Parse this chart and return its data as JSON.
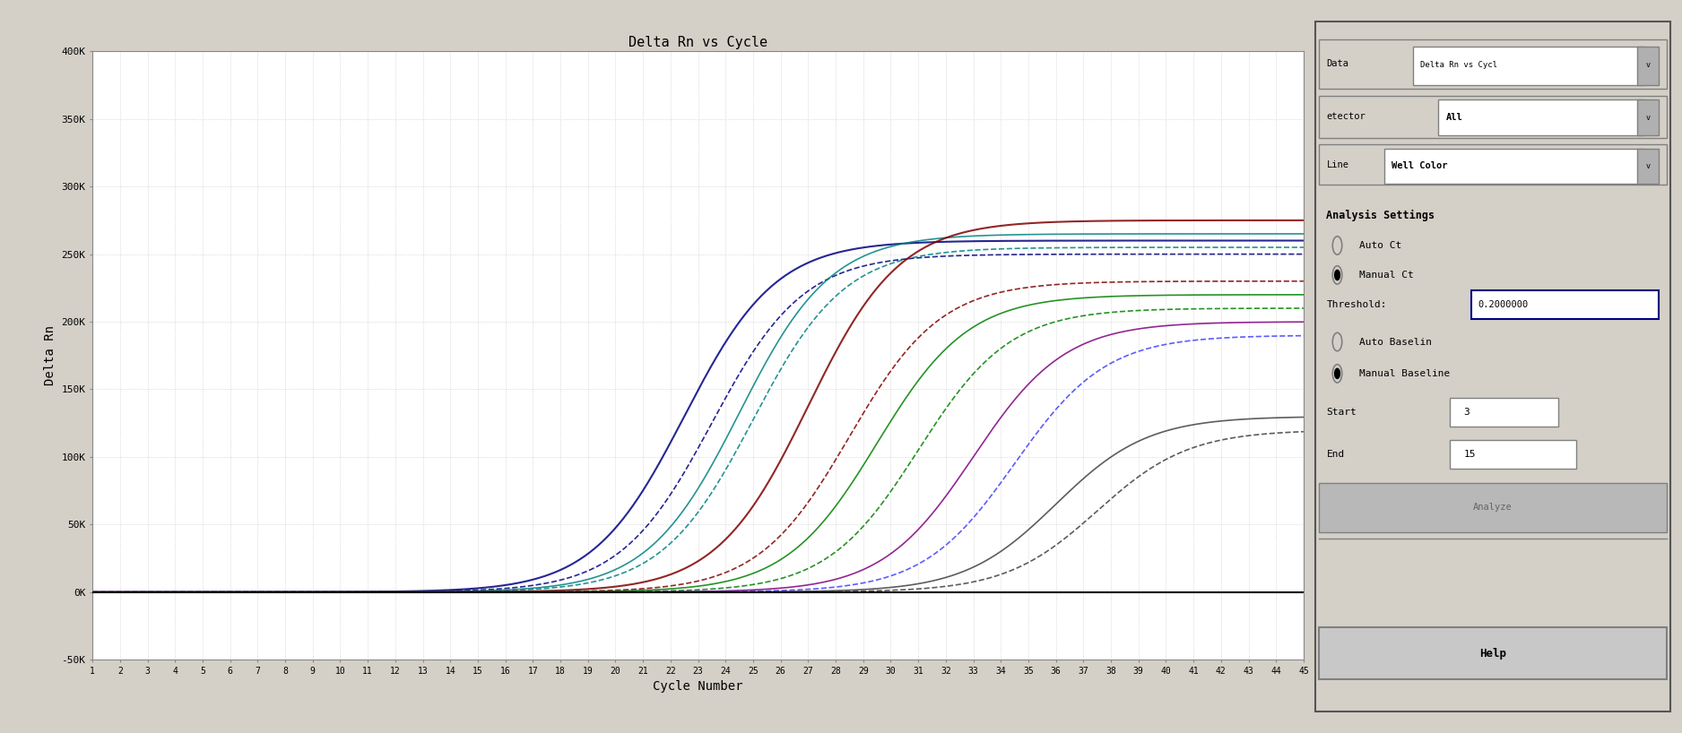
{
  "title": "Delta Rn vs Cycle",
  "xlabel": "Cycle Number",
  "ylabel": "Delta Rn",
  "xlim": [
    1,
    45
  ],
  "ylim": [
    -50000,
    400000
  ],
  "yticks": [
    -50000,
    0,
    50000,
    100000,
    150000,
    200000,
    250000,
    300000,
    350000,
    400000
  ],
  "ytick_labels": [
    "-50K",
    "0K",
    "50K",
    "100K",
    "150K",
    "200K",
    "250K",
    "300K",
    "350K",
    "400K"
  ],
  "xticks": [
    1,
    2,
    3,
    4,
    5,
    6,
    7,
    8,
    9,
    10,
    11,
    12,
    13,
    14,
    15,
    16,
    17,
    18,
    19,
    20,
    21,
    22,
    23,
    24,
    25,
    26,
    27,
    28,
    29,
    30,
    31,
    32,
    33,
    34,
    35,
    36,
    37,
    38,
    39,
    40,
    41,
    42,
    43,
    44,
    45
  ],
  "bg_color": "#d4d0c8",
  "plot_bg": "#ffffff",
  "grid_color": "#aaaaaa",
  "curves": [
    {
      "midpoint": 22.5,
      "plateau": 260000,
      "style": "solid",
      "color": "#000080",
      "lw": 1.5
    },
    {
      "midpoint": 23.5,
      "plateau": 250000,
      "style": "dashed",
      "color": "#000080",
      "lw": 1.2
    },
    {
      "midpoint": 24.5,
      "plateau": 265000,
      "style": "solid",
      "color": "#008080",
      "lw": 1.2
    },
    {
      "midpoint": 25.0,
      "plateau": 255000,
      "style": "dashed",
      "color": "#008080",
      "lw": 1.2
    },
    {
      "midpoint": 27.0,
      "plateau": 275000,
      "style": "solid",
      "color": "#800000",
      "lw": 1.5
    },
    {
      "midpoint": 28.5,
      "plateau": 230000,
      "style": "dashed",
      "color": "#800000",
      "lw": 1.2
    },
    {
      "midpoint": 29.5,
      "plateau": 220000,
      "style": "solid",
      "color": "#008000",
      "lw": 1.2
    },
    {
      "midpoint": 31.0,
      "plateau": 210000,
      "style": "dashed",
      "color": "#008000",
      "lw": 1.2
    },
    {
      "midpoint": 33.0,
      "plateau": 200000,
      "style": "solid",
      "color": "#800080",
      "lw": 1.2
    },
    {
      "midpoint": 34.5,
      "plateau": 190000,
      "style": "dashed",
      "color": "#4040ff",
      "lw": 1.2
    },
    {
      "midpoint": 36.0,
      "plateau": 130000,
      "style": "solid",
      "color": "#404040",
      "lw": 1.2
    },
    {
      "midpoint": 37.5,
      "plateau": 120000,
      "style": "dashed",
      "color": "#404040",
      "lw": 1.2
    }
  ]
}
